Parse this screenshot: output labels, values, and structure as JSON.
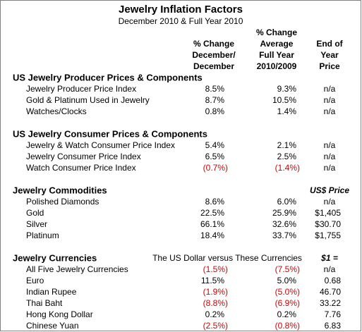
{
  "header": {
    "title": "Jewelry Inflation Factors",
    "subtitle": "December 2010 & Full Year 2010"
  },
  "columns": [
    [
      "% Change",
      "December/",
      "December"
    ],
    [
      "% Change",
      "Average",
      "Full Year",
      "2010/2009"
    ],
    [
      "End of",
      "Year",
      "Price"
    ]
  ],
  "sections": [
    {
      "title": "US Jewelry Producer Prices & Components",
      "rows": [
        [
          "Jewelry Producer Price Index",
          "8.5%",
          "9.3%",
          "n/a"
        ],
        [
          "Gold & Platinum Used in Jewelry",
          "8.7%",
          "10.5%",
          "n/a"
        ],
        [
          "Watches/Clocks",
          "0.8%",
          "1.4%",
          "n/a"
        ]
      ]
    },
    {
      "title": "US Jewelry Consumer Prices & Components",
      "rows": [
        [
          "Jewelry & Watch Consumer Price Index",
          "5.4%",
          "2.1%",
          "n/a"
        ],
        [
          "Jewelry Consumer Price Index",
          "6.5%",
          "2.5%",
          "n/a"
        ],
        [
          "Watch Consumer Price Index",
          "(0.7%)",
          "(1.4%)",
          "n/a"
        ]
      ]
    },
    {
      "title": "Jewelry Commodities",
      "price_label": "US$ Price",
      "rows": [
        [
          "Polished Diamonds",
          "8.6%",
          "6.0%",
          "n/a"
        ],
        [
          "Gold",
          "22.5%",
          "25.9%",
          "$1,405"
        ],
        [
          "Silver",
          "66.1%",
          "32.6%",
          "$30.70"
        ],
        [
          "Platinum",
          "18.4%",
          "33.7%",
          "$1,755"
        ]
      ]
    },
    {
      "title": "Jewelry Currencies",
      "note": "The US Dollar versus These Currencies",
      "price_label": "$1 =",
      "rows": [
        [
          "All Five Jewelry Currencies",
          "(1.5%)",
          "(7.5%)",
          "n/a"
        ],
        [
          "Euro",
          "11.5%",
          "5.0%",
          "0.68"
        ],
        [
          "Indian Rupee",
          "(1.9%)",
          "(5.0%)",
          "46.70"
        ],
        [
          "Thai Baht",
          "(8.8%)",
          "(6.9%)",
          "33.22"
        ],
        [
          "Hong Kong Dollar",
          "0.2%",
          "0.2%",
          "7.76"
        ],
        [
          "Chinese Yuan",
          "(2.5%)",
          "(0.8%)",
          "6.83"
        ]
      ]
    }
  ]
}
